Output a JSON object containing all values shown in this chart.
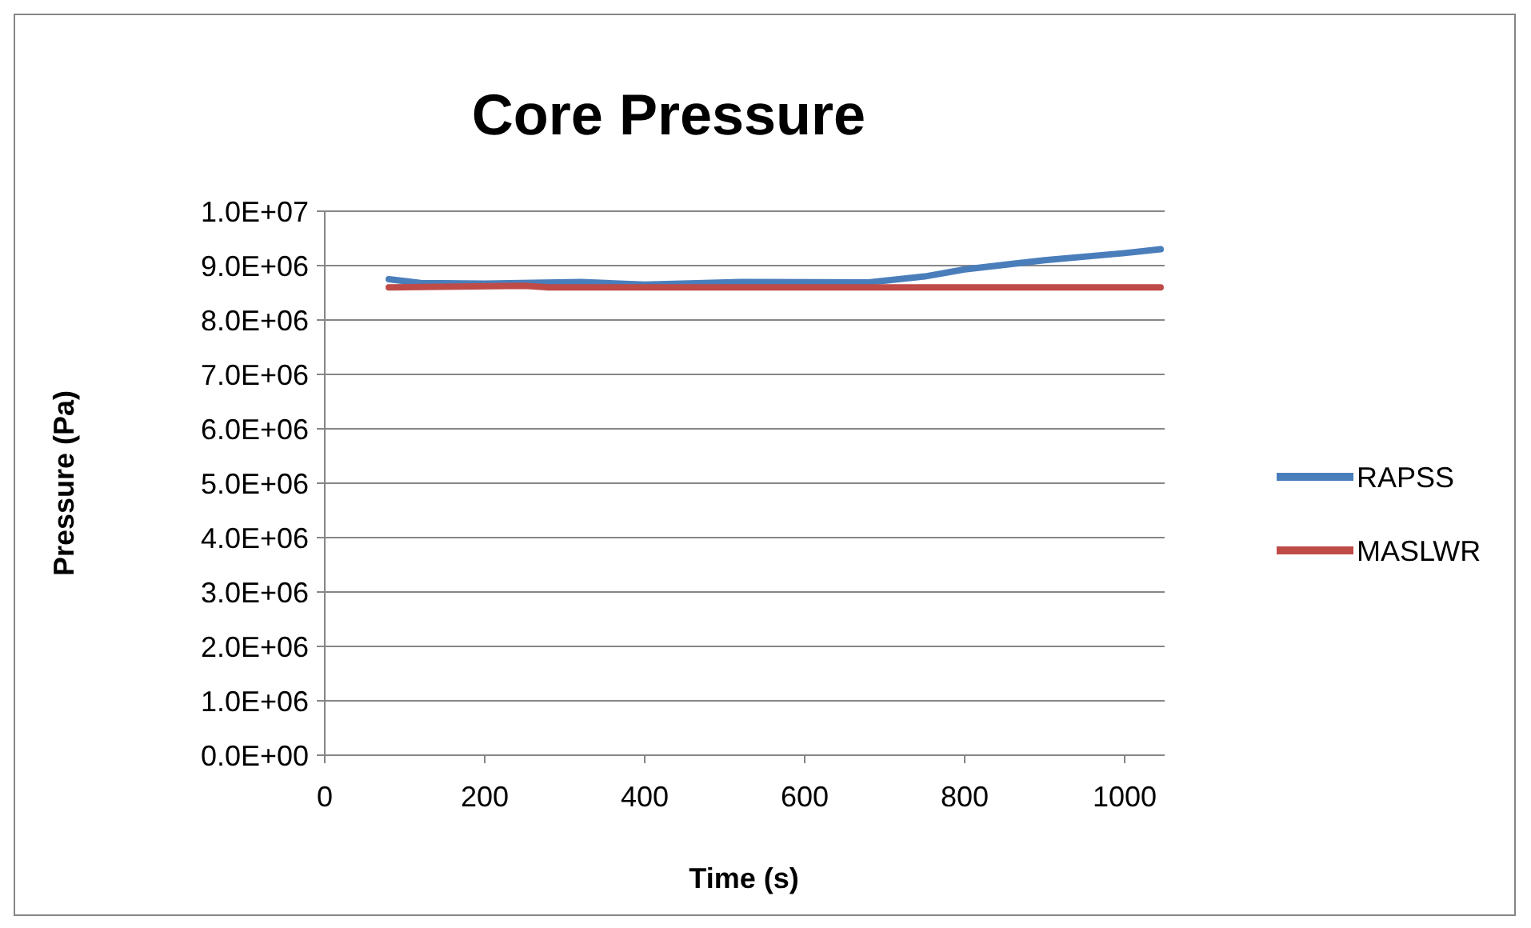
{
  "chart_data": {
    "type": "line",
    "title": "Core Pressure",
    "xlabel": "Time (s)",
    "ylabel": "Pressure (Pa)",
    "xlim": [
      0,
      1050
    ],
    "xticks": [
      0,
      200,
      400,
      600,
      800,
      1000
    ],
    "ylim": [
      0,
      10000000
    ],
    "yticks": [
      {
        "value": 0,
        "label": "0.0E+00"
      },
      {
        "value": 1000000,
        "label": "1.0E+06"
      },
      {
        "value": 2000000,
        "label": "2.0E+06"
      },
      {
        "value": 3000000,
        "label": "3.0E+06"
      },
      {
        "value": 4000000,
        "label": "4.0E+06"
      },
      {
        "value": 5000000,
        "label": "5.0E+06"
      },
      {
        "value": 6000000,
        "label": "6.0E+06"
      },
      {
        "value": 7000000,
        "label": "7.0E+06"
      },
      {
        "value": 8000000,
        "label": "8.0E+06"
      },
      {
        "value": 9000000,
        "label": "9.0E+06"
      },
      {
        "value": 10000000,
        "label": "1.0E+07"
      }
    ],
    "grid": "y",
    "legend": "right",
    "marker": "none",
    "line_style": "solid",
    "series": [
      {
        "name": "RAPSS",
        "color": "#4a7ebb",
        "x": [
          80,
          120,
          200,
          320,
          400,
          520,
          680,
          750,
          800,
          900,
          1000,
          1045
        ],
        "values": [
          8750000,
          8680000,
          8670000,
          8700000,
          8650000,
          8700000,
          8690000,
          8800000,
          8930000,
          9100000,
          9230000,
          9300000
        ]
      },
      {
        "name": "MASLWR",
        "color": "#be4b48",
        "x": [
          80,
          250,
          280,
          1045
        ],
        "values": [
          8600000,
          8630000,
          8600000,
          8600000
        ]
      }
    ]
  }
}
